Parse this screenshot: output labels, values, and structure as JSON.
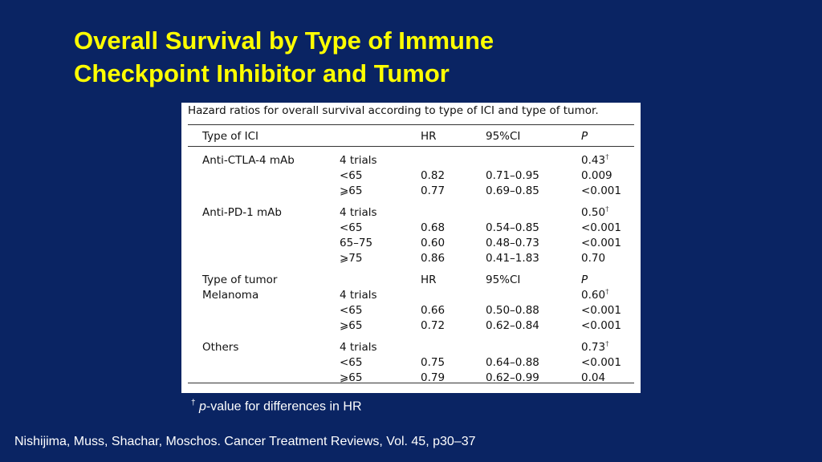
{
  "slide": {
    "title_line1": "Overall Survival by Type of Immune",
    "title_line2": "Checkpoint Inhibitor and Tumor"
  },
  "table": {
    "caption": "Hazard ratios for overall survival according to type of ICI and type of tumor.",
    "header": {
      "col1": "Type of ICI",
      "col3": "HR",
      "col4": "95%CI",
      "col5": "P"
    },
    "rows": [
      {
        "c1": "Anti-CTLA-4 mAb",
        "c2": "4 trials",
        "c3": "",
        "c4": "",
        "c5": "0.43",
        "dag": "†"
      },
      {
        "c1": "",
        "c2": "<65",
        "c3": "0.82",
        "c4": "0.71–0.95",
        "c5": "0.009",
        "dag": ""
      },
      {
        "c1": "",
        "c2": "⩾65",
        "c3": "0.77",
        "c4": "0.69–0.85",
        "c5": "<0.001",
        "dag": ""
      },
      {
        "c1": "Anti-PD-1 mAb",
        "c2": "4 trials",
        "c3": "",
        "c4": "",
        "c5": "0.50",
        "dag": "†"
      },
      {
        "c1": "",
        "c2": "<65",
        "c3": "0.68",
        "c4": "0.54–0.85",
        "c5": "<0.001",
        "dag": ""
      },
      {
        "c1": "",
        "c2": "65–75",
        "c3": "0.60",
        "c4": "0.48–0.73",
        "c5": "<0.001",
        "dag": ""
      },
      {
        "c1": "",
        "c2": "⩾75",
        "c3": "0.86",
        "c4": "0.41–1.83",
        "c5": "0.70",
        "dag": ""
      },
      {
        "c1": "Type of tumor",
        "c2": "",
        "c3": "HR",
        "c4": "95%CI",
        "c5": "P",
        "dag": ""
      },
      {
        "c1": "Melanoma",
        "c2": "4 trials",
        "c3": "",
        "c4": "",
        "c5": "0.60",
        "dag": "†"
      },
      {
        "c1": "",
        "c2": "<65",
        "c3": "0.66",
        "c4": "0.50–0.88",
        "c5": "<0.001",
        "dag": ""
      },
      {
        "c1": "",
        "c2": "⩾65",
        "c3": "0.72",
        "c4": "0.62–0.84",
        "c5": "<0.001",
        "dag": ""
      },
      {
        "c1": "Others",
        "c2": "4 trials",
        "c3": "",
        "c4": "",
        "c5": "0.73",
        "dag": "†"
      },
      {
        "c1": "",
        "c2": "<65",
        "c3": "0.75",
        "c4": "0.64–0.88",
        "c5": "<0.001",
        "dag": ""
      },
      {
        "c1": "",
        "c2": "⩾65",
        "c3": "0.79",
        "c4": "0.62–0.99",
        "c5": "0.04",
        "dag": ""
      }
    ]
  },
  "footnote": {
    "mark": "†",
    "p": "p",
    "text": "-value for differences in HR"
  },
  "citation": "Nishijima, Muss, Shachar, Moschos.  Cancer Treatment Reviews, Vol. 45, p30–37",
  "colors": {
    "background": "#0a2463",
    "title": "#ffff00",
    "text": "#ffffff"
  }
}
